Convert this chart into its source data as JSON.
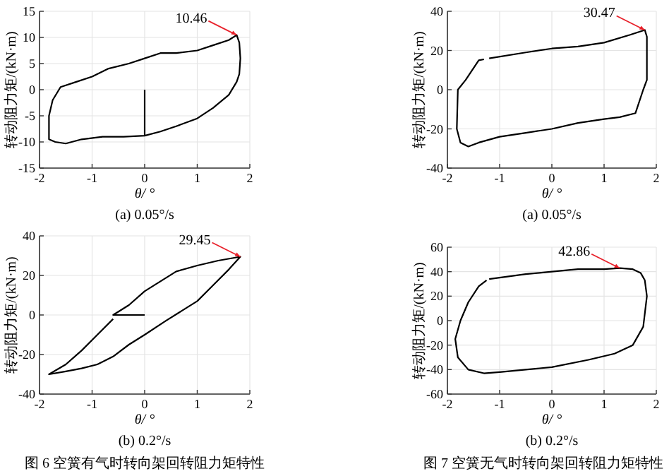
{
  "chart_data": [
    {
      "type": "line",
      "title": "(a) 0.05°/s",
      "xlabel": "θ/ °",
      "ylabel": "转动阻力矩/(kN·m)",
      "xlim": [
        -2,
        2
      ],
      "ylim": [
        -15,
        15
      ],
      "xticks": [
        -2,
        -1,
        0,
        1,
        2
      ],
      "yticks": [
        -15,
        -10,
        -5,
        0,
        5,
        10,
        15
      ],
      "grid": true,
      "series": [
        {
          "color": "#000000",
          "x": [
            0,
            0,
            0.3,
            0.6,
            1.0,
            1.3,
            1.6,
            1.75,
            1.8,
            1.82,
            1.8,
            1.75,
            1.6,
            1.3,
            1.0,
            0.6,
            0.3,
            0,
            -0.3,
            -0.7,
            -1.0,
            -1.3,
            -1.6,
            -1.75,
            -1.82,
            -1.82,
            -1.7,
            -1.5,
            -1.2,
            -0.8,
            -0.4,
            0
          ],
          "values": [
            0,
            -8.8,
            -8,
            -7,
            -5.5,
            -3.5,
            -1,
            1.5,
            3,
            6,
            9,
            10.46,
            9.5,
            8.5,
            7.5,
            7,
            7,
            6,
            5,
            4,
            2.5,
            1.5,
            0.5,
            -2,
            -5,
            -9.5,
            -10,
            -10.3,
            -9.5,
            -9,
            -9,
            -8.8
          ]
        }
      ],
      "annotations": [
        {
          "text": "10.46",
          "x": 1.75,
          "y": 10.46
        }
      ]
    },
    {
      "type": "line",
      "title": "(a) 0.05°/s",
      "xlabel": "θ/ °",
      "ylabel": "转动阻力矩/(kN·m)",
      "xlim": [
        -2,
        2
      ],
      "ylim": [
        -40,
        40
      ],
      "xticks": [
        -2,
        -1,
        0,
        1,
        2
      ],
      "yticks": [
        -40,
        -20,
        0,
        20,
        40
      ],
      "grid": true,
      "series": [
        {
          "color": "#000000",
          "x": [
            -1.2,
            -0.5,
            0,
            0.5,
            1.0,
            1.5,
            1.78,
            1.82,
            1.82,
            1.75,
            1.6,
            1.3,
            1.0,
            0.5,
            0,
            -0.5,
            -1.0,
            -1.4,
            -1.6,
            -1.75,
            -1.82,
            -1.8,
            -1.65,
            -1.4,
            -1.3
          ],
          "values": [
            16,
            19,
            21,
            22,
            24,
            28,
            30.47,
            27,
            5,
            0,
            -12,
            -14,
            -15,
            -17,
            -20,
            -22,
            -24,
            -27,
            -29,
            -27,
            -20,
            0,
            5,
            15,
            15.5
          ]
        }
      ],
      "annotations": [
        {
          "text": "30.47",
          "x": 1.78,
          "y": 30.47
        }
      ]
    },
    {
      "type": "line",
      "title": "(b) 0.2°/s",
      "xlabel": "θ/ °",
      "ylabel": "转动阻力矩/(kN·m)",
      "xlim": [
        -2,
        2
      ],
      "ylim": [
        -40,
        40
      ],
      "xticks": [
        -2,
        -1,
        0,
        1,
        2
      ],
      "yticks": [
        -40,
        -20,
        0,
        20,
        40
      ],
      "grid": true,
      "series": [
        {
          "color": "#000000",
          "x": [
            0,
            -0.6,
            -0.3,
            0,
            0.3,
            0.6,
            1.0,
            1.4,
            1.82,
            1.6,
            1.3,
            1.0,
            0.7,
            0.4,
            0,
            -0.3,
            -0.6,
            -0.9,
            -1.2,
            -1.5,
            -1.82,
            -1.5,
            -1.2,
            -0.9,
            -0.6
          ],
          "values": [
            0,
            0,
            5,
            12,
            17,
            22,
            25,
            27.5,
            29.45,
            23,
            15,
            7,
            2,
            -3,
            -10,
            -15,
            -21,
            -25,
            -27,
            -28.5,
            -30,
            -25,
            -18,
            -10,
            -2
          ]
        }
      ],
      "annotations": [
        {
          "text": "29.45",
          "x": 1.82,
          "y": 29.45
        },
        "图 6 空簧有气时转向架回转阻力矩特性"
      ]
    },
    {
      "type": "line",
      "title": "(b) 0.2°/s",
      "xlabel": "θ/ °",
      "ylabel": "转动阻力矩/(kN·m)",
      "xlim": [
        -2,
        2
      ],
      "ylim": [
        -60,
        60
      ],
      "xticks": [
        -2,
        -1,
        0,
        1,
        2
      ],
      "yticks": [
        -60,
        -40,
        -20,
        0,
        20,
        40,
        60
      ],
      "grid": true,
      "series": [
        {
          "color": "#000000",
          "x": [
            -1.2,
            -0.5,
            0,
            0.5,
            1.0,
            1.3,
            1.55,
            1.7,
            1.78,
            1.82,
            1.75,
            1.55,
            1.2,
            0.7,
            0,
            -0.5,
            -1.0,
            -1.3,
            -1.6,
            -1.8,
            -1.85,
            -1.75,
            -1.6,
            -1.4,
            -1.25
          ],
          "values": [
            34,
            38,
            40,
            42,
            42,
            42.86,
            42,
            39,
            33,
            20,
            -5,
            -20,
            -27,
            -32,
            -38,
            -40,
            -42,
            -43,
            -40,
            -30,
            -15,
            0,
            15,
            28,
            33
          ]
        }
      ],
      "annotations": [
        {
          "text": "42.86",
          "x": 1.3,
          "y": 42.86
        },
        "图 7 空簧无气时转向架回转阻力矩特性"
      ]
    }
  ]
}
